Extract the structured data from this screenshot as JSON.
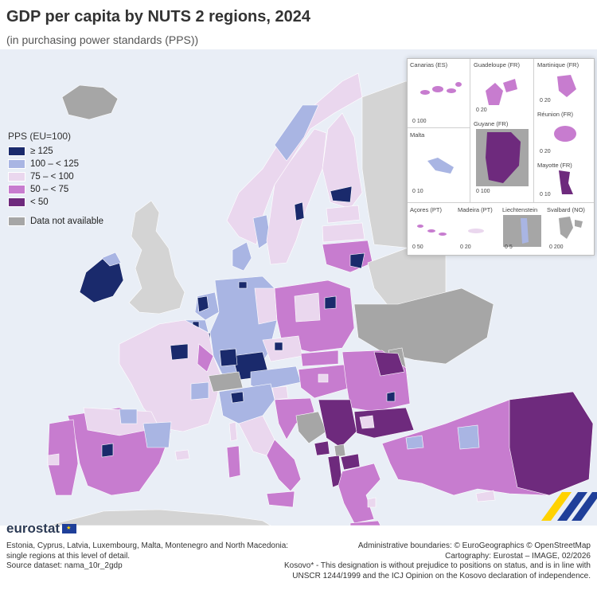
{
  "title": "GDP per capita by NUTS 2 regions, 2024",
  "subtitle": "(in purchasing power standards (PPS))",
  "legend": {
    "title": "PPS (EU=100)",
    "classes": [
      {
        "label": "≥ 125",
        "color": "#1a2a6c"
      },
      {
        "label": "100 – < 125",
        "color": "#a9b5e3"
      },
      {
        "label": "75 – < 100",
        "color": "#ead7ee"
      },
      {
        "label": "50 – < 75",
        "color": "#c77ccf"
      },
      {
        "label": "< 50",
        "color": "#6e2a7d"
      }
    ],
    "not_available": {
      "label": "Data not available",
      "color": "#a6a6a6"
    }
  },
  "insets": {
    "canarias": {
      "name": "Canarias (ES)",
      "scale": "0  100"
    },
    "guadeloupe": {
      "name": "Guadeloupe (FR)",
      "scale": "0  20"
    },
    "martinique": {
      "name": "Martinique (FR)",
      "scale": "0  20"
    },
    "reunion": {
      "name": "Réunion (FR)",
      "scale": "0  20"
    },
    "malta": {
      "name": "Malta",
      "scale": "0  10"
    },
    "guyane": {
      "name": "Guyane (FR)",
      "scale": "0  100"
    },
    "mayotte": {
      "name": "Mayotte (FR)",
      "scale": "0 10"
    },
    "acores": {
      "name": "Açores (PT)",
      "scale": "0  50"
    },
    "madeira": {
      "name": "Madeira (PT)",
      "scale": "0  20"
    },
    "liechtenstein": {
      "name": "Liechtenstein",
      "scale": "0  5"
    },
    "svalbard": {
      "name": "Svalbard (NO)",
      "scale": "0  200"
    }
  },
  "logo": "eurostat",
  "footnote_left": [
    "Estonia, Cyprus, Latvia, Luxembourg, Malta, Montenegro and North Macedonia:",
    "single regions at this level of detail.",
    "Source dataset: nama_10r_2gdp"
  ],
  "footnote_right": [
    "Administrative boundaries: © EuroGeographics © OpenStreetMap",
    "Cartography: Eurostat – IMAGE, 02/2026",
    "Kosovo* - This designation is without prejudice to positions on status, and is in line with",
    "UNSCR 1244/1999 and the ICJ Opinion on the Kosovo declaration of independence."
  ]
}
